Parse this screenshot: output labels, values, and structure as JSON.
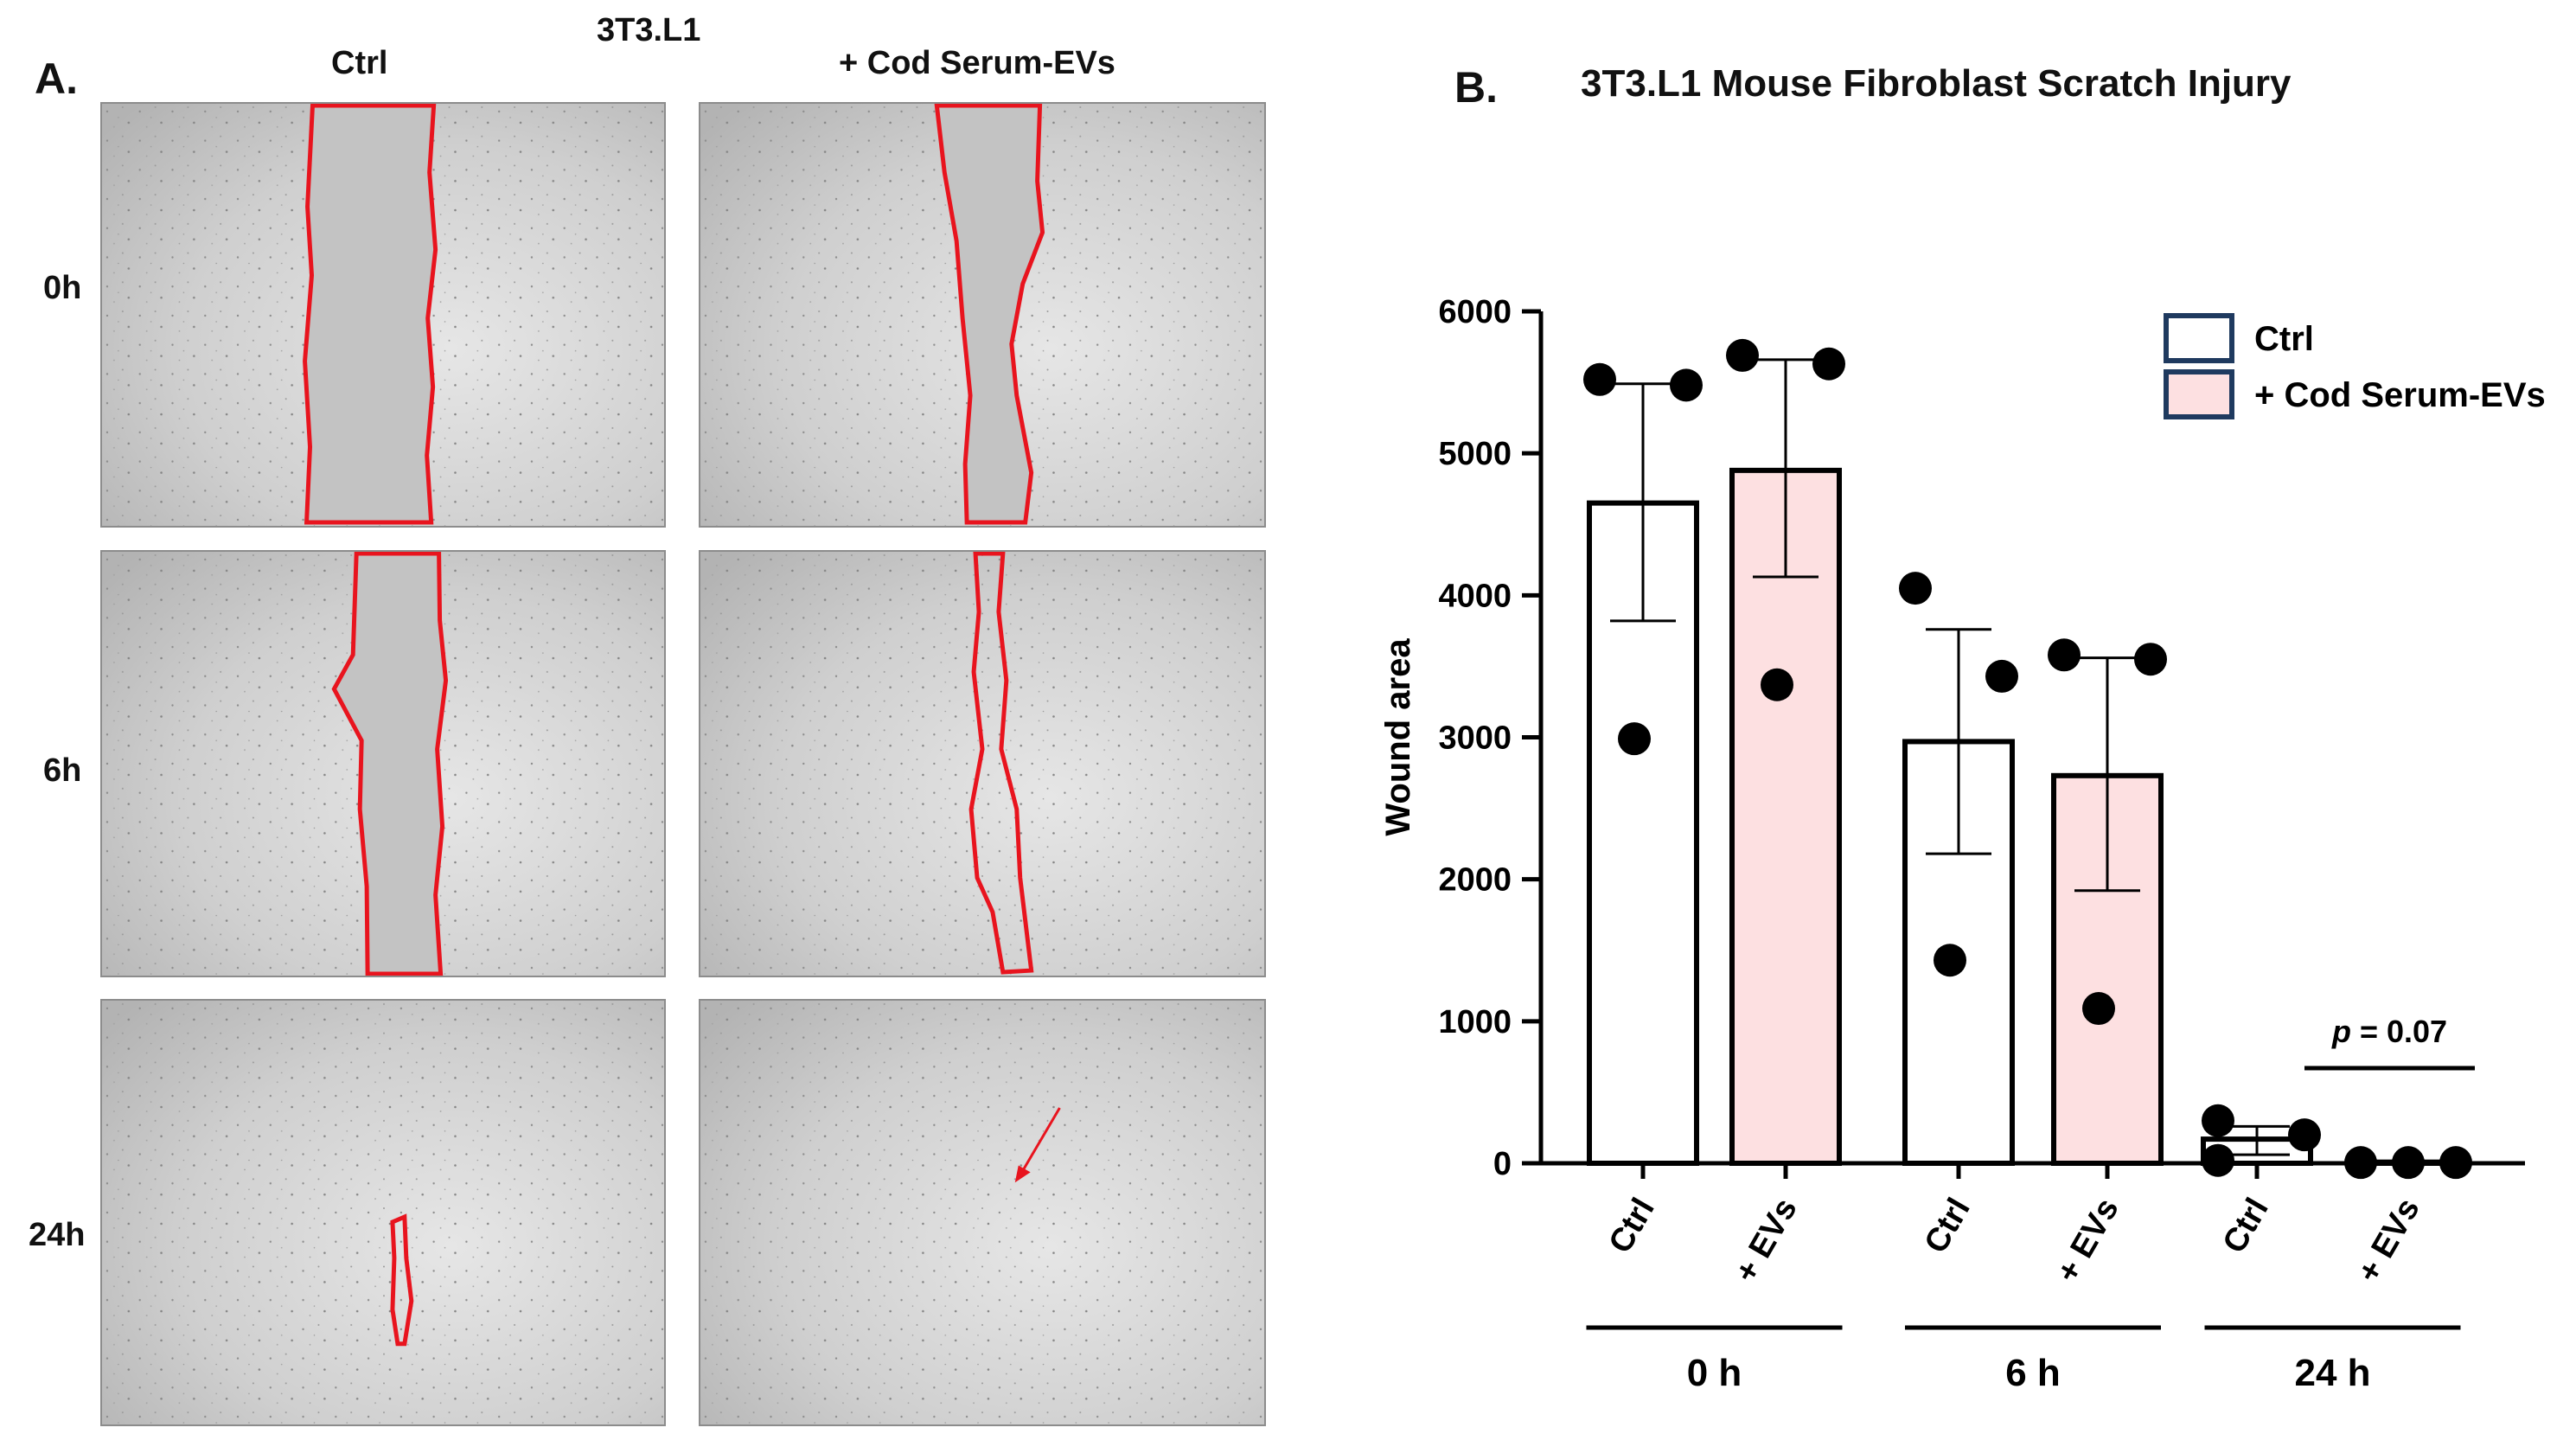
{
  "figure": {
    "panel_a": {
      "letter": "A.",
      "cell_line": "3T3.L1",
      "columns": [
        "Ctrl",
        "+ Cod Serum-EVs"
      ],
      "rows": [
        "0h",
        "6h",
        "24h"
      ]
    },
    "panel_b": {
      "letter": "B."
    }
  },
  "colors": {
    "ctrl_fill": "#ffffff",
    "evs_fill": "#fde0e1",
    "bar_stroke": "#000000",
    "legend_border": "#1f3a5f",
    "wound_outline": "#e8141e",
    "micro_bg": "#c9c9c9"
  },
  "chart_data": {
    "type": "bar",
    "title": "3T3.L1 Mouse Fibroblast Scratch Injury",
    "ylabel": "Wound area",
    "ylim": [
      0,
      6000
    ],
    "yticks": [
      0,
      1000,
      2000,
      3000,
      4000,
      5000,
      6000
    ],
    "ytick_labels": [
      "0",
      "1000",
      "2000",
      "3000",
      "4000",
      "5000",
      "6000"
    ],
    "legend": {
      "placement": "top-right",
      "entries": [
        "Ctrl",
        "+ Cod Serum-EVs"
      ]
    },
    "groups": [
      {
        "label": "0 h",
        "bars": [
          {
            "category": "Ctrl",
            "mean": 4650,
            "error_low": 3820,
            "error_high": 5490,
            "points": [
              5520,
              5480,
              2990
            ]
          },
          {
            "category": "+ EVs",
            "mean": 4880,
            "error_low": 4130,
            "error_high": 5660,
            "points": [
              5690,
              5630,
              3370
            ]
          }
        ]
      },
      {
        "label": "6 h",
        "bars": [
          {
            "category": "Ctrl",
            "mean": 2970,
            "error_low": 2180,
            "error_high": 3760,
            "points": [
              4050,
              3430,
              1430
            ]
          },
          {
            "category": "+ EVs",
            "mean": 2730,
            "error_low": 1920,
            "error_high": 3560,
            "points": [
              3580,
              3550,
              1090
            ]
          }
        ]
      },
      {
        "label": "24 h",
        "bars": [
          {
            "category": "Ctrl",
            "mean": 170,
            "error_low": 60,
            "error_high": 260,
            "points": [
              300,
              200,
              20
            ]
          },
          {
            "category": "+ EVs",
            "mean": 8,
            "error_low": 0,
            "error_high": 12,
            "points": [
              5,
              5,
              5
            ]
          }
        ]
      }
    ],
    "annotation": {
      "p_symbol": "p",
      "p_value": " = 0.07",
      "group": "24 h"
    }
  }
}
